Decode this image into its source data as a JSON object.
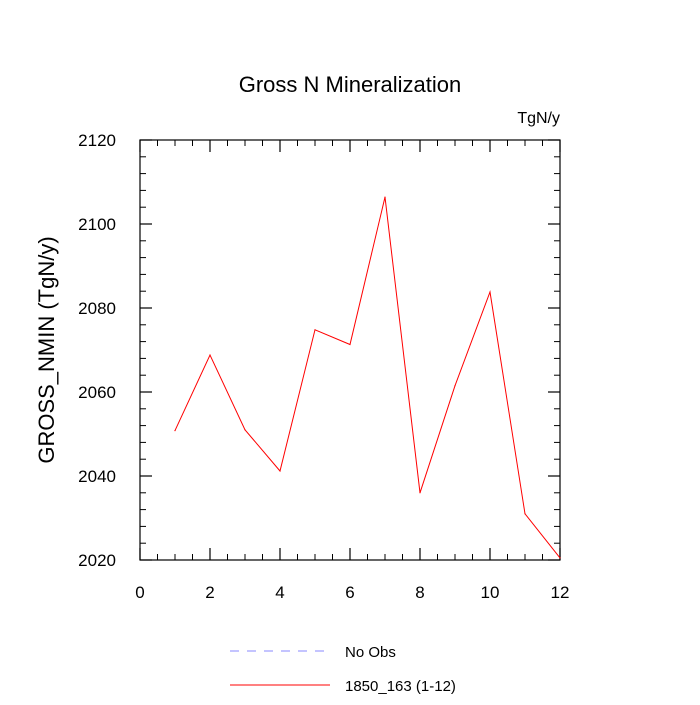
{
  "chart_data": {
    "type": "line",
    "title": "Gross N Mineralization",
    "units_label": "TgN/y",
    "ylabel": "GROSS_NMIN  (TgN/y)",
    "xlabel": "",
    "xlim": [
      0,
      12
    ],
    "ylim": [
      2020,
      2120
    ],
    "x_ticks": [
      0,
      2,
      4,
      6,
      8,
      10,
      12
    ],
    "y_ticks": [
      2020,
      2040,
      2060,
      2080,
      2100,
      2120
    ],
    "x_tick_labels": [
      "0",
      "2",
      "4",
      "6",
      "8",
      "10",
      "12"
    ],
    "y_tick_labels": [
      "2020",
      "2040",
      "2060",
      "2080",
      "2100",
      "2120"
    ],
    "grid": false,
    "legend_placement": "bottom",
    "series": [
      {
        "name": "1850_163 (1-12)",
        "color": "#ff0000",
        "style": "solid",
        "x": [
          1,
          2,
          3,
          4,
          5,
          6,
          7,
          8,
          9,
          10,
          11,
          12
        ],
        "values": [
          2050.8,
          2068.8,
          2051.0,
          2041.2,
          2074.8,
          2071.3,
          2106.4,
          2036.0,
          2061.5,
          2083.8,
          2031.0,
          2020.5
        ]
      }
    ],
    "legend": [
      {
        "label": "No Obs",
        "color": "#8888ff",
        "style": "dashed"
      },
      {
        "label": "1850_163 (1-12)",
        "color": "#ff0000",
        "style": "solid"
      }
    ]
  }
}
